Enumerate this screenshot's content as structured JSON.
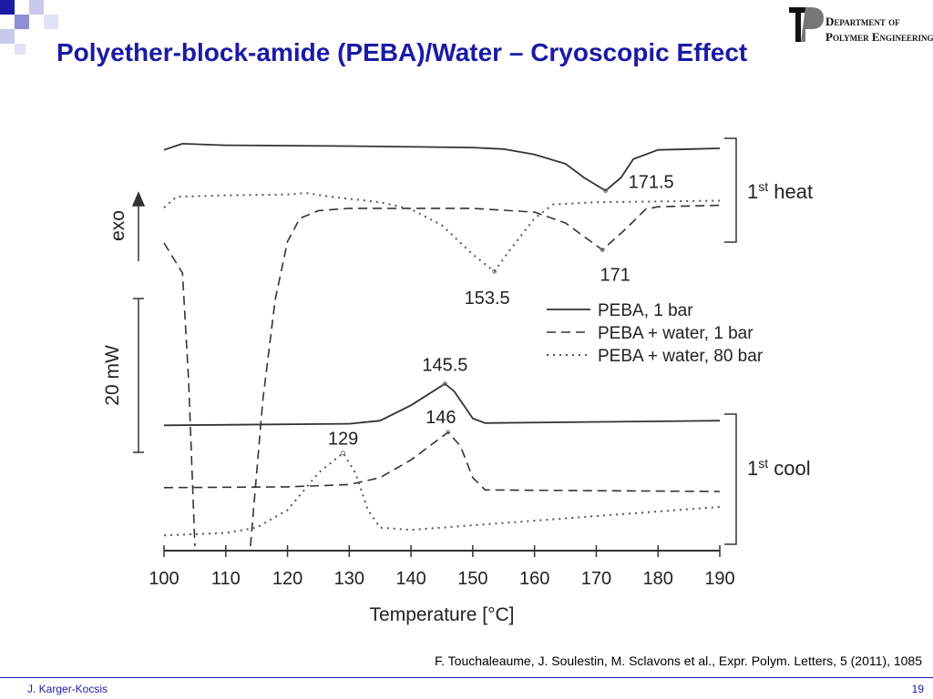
{
  "slide": {
    "title": "Polyether-block-amide (PEBA)/Water – Cryoscopic Effect",
    "logo": {
      "line1": "Department of",
      "line2": "Polymer Engineering"
    },
    "citation": "F. Touchaleaume, J. Soulestin, M. Sclavons et al., Expr. Polym. Letters, 5 (2011), 1085",
    "footer": {
      "author": "J. Karger-Kocsis",
      "page": "19"
    }
  },
  "chart_data": {
    "type": "line",
    "x_label": "Temperature [°C]",
    "xlim": [
      100,
      190
    ],
    "xticks": [
      100,
      110,
      120,
      130,
      140,
      150,
      160,
      170,
      180,
      190
    ],
    "ylim": [
      0,
      53
    ],
    "exo_label": "exo",
    "scale_bar": {
      "value": 20,
      "label": "20 mW"
    },
    "heat_bracket": {
      "ordinal": "1",
      "suffix": "st",
      "word": " heat"
    },
    "cool_bracket": {
      "ordinal": "1",
      "suffix": "st",
      "word": " cool"
    },
    "series": [
      {
        "name": "PEBA, 1 bar",
        "color": "#333333",
        "line_style": "solid",
        "heat": {
          "x": [
            100,
            103,
            110,
            130,
            150,
            155,
            160,
            165,
            168,
            171.5,
            174,
            176,
            180,
            190
          ],
          "values": [
            51.5,
            52.3,
            52.1,
            52.0,
            51.8,
            51.6,
            50.9,
            49.7,
            47.9,
            46.2,
            47.9,
            50.3,
            51.5,
            51.7
          ]
        },
        "cool": {
          "x": [
            100,
            130,
            135,
            140,
            145.5,
            147,
            150,
            152,
            190
          ],
          "values": [
            15.7,
            15.9,
            16.3,
            18.3,
            21.1,
            20.1,
            16.6,
            16.0,
            16.3
          ]
        }
      },
      {
        "name": "PEBA + water, 1 bar",
        "color": "#333333",
        "line_style": "dashed",
        "heat": {
          "x": [
            100,
            103,
            104,
            105,
            110,
            114,
            116,
            118,
            120,
            122,
            125,
            130,
            150,
            160,
            165,
            171,
            175,
            178,
            180,
            190
          ],
          "values": [
            39.4,
            35.5,
            21.3,
            0,
            null,
            0,
            18.9,
            32.0,
            39.6,
            42.6,
            43.6,
            43.9,
            43.9,
            43.4,
            42.0,
            38.5,
            41.4,
            43.8,
            44.1,
            44.3
          ]
        },
        "cool": {
          "x": [
            100,
            120,
            130,
            135,
            140,
            146,
            148,
            150,
            152,
            190
          ],
          "values": [
            7.6,
            7.7,
            8.0,
            8.9,
            11.2,
            14.8,
            13.0,
            8.9,
            7.3,
            7.1
          ]
        }
      },
      {
        "name": "PEBA + water, 80 bar",
        "color": "#555555",
        "line_style": "dotted",
        "heat": {
          "x": [
            100,
            102,
            110,
            120,
            123,
            127,
            135,
            140,
            145,
            150,
            153.5,
            156,
            160,
            163,
            170,
            190
          ],
          "values": [
            44.0,
            45.4,
            45.6,
            45.7,
            45.9,
            45.4,
            44.7,
            43.8,
            41.7,
            37.9,
            35.7,
            38.5,
            42.6,
            44.4,
            44.7,
            44.9
          ]
        },
        "cool": {
          "x": [
            100,
            110,
            115,
            120,
            125,
            129,
            131,
            133,
            135,
            140,
            190
          ],
          "values": [
            1.4,
            1.7,
            2.4,
            4.7,
            9.5,
            12.1,
            9.5,
            4.7,
            2.4,
            2.1,
            5.1
          ]
        }
      }
    ],
    "peak_labels": [
      {
        "x": 171.5,
        "y": 46.2
      },
      {
        "x": 171,
        "y": 38.5
      },
      {
        "x": 153.5,
        "y": 35.7
      },
      {
        "x": 145.5,
        "y": 21.1
      },
      {
        "x": 146,
        "y": 14.8
      },
      {
        "x": 129,
        "y": 12.1
      }
    ]
  }
}
